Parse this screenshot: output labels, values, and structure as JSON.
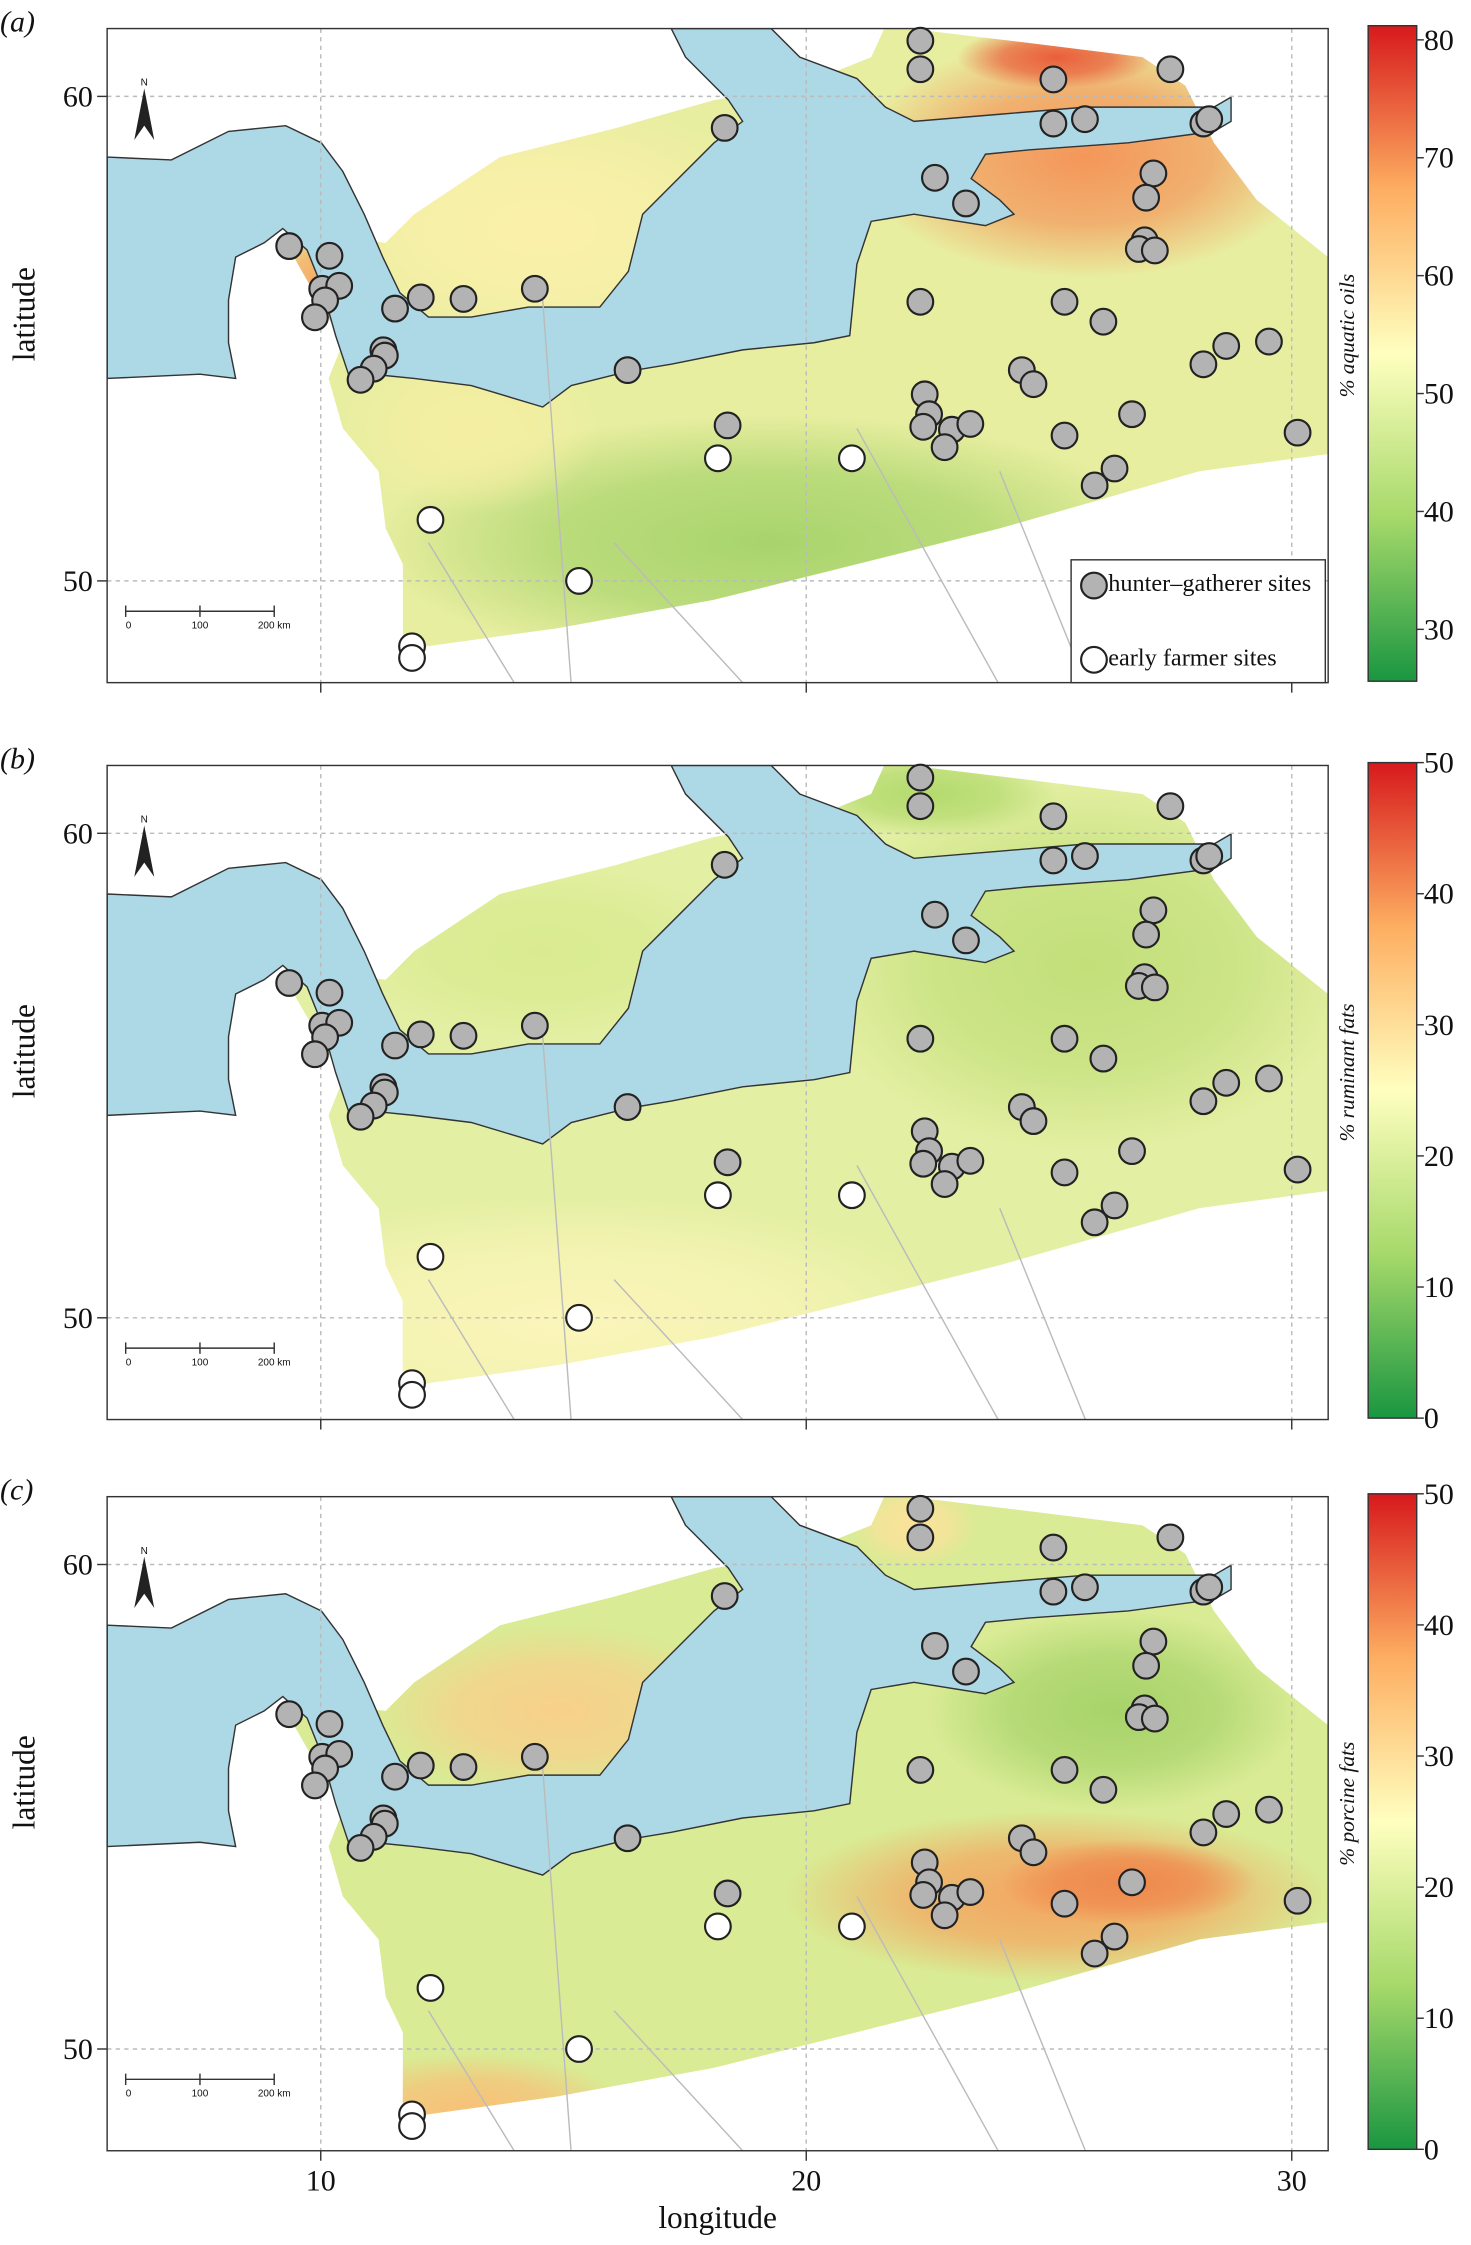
{
  "chart_data": [
    {
      "type": "scatter",
      "panel_label": "(a)",
      "ylabel": "latitude",
      "xlim": [
        5.6,
        30.75
      ],
      "ylim": [
        47.9,
        61.4
      ],
      "xticks": [
        10,
        20,
        30
      ],
      "yticks": [
        50,
        60
      ],
      "grid": true,
      "series": [
        {
          "name": "hunter–gatherer sites",
          "color": "#b3b3b3",
          "x": [
            22.35,
            22.35,
            25.09,
            27.5,
            18.32,
            25.09,
            25.74,
            28.18,
            28.3,
            22.65,
            27.15,
            27.0,
            23.29,
            26.97,
            26.85,
            27.18,
            9.35,
            10.18,
            10.03,
            10.38,
            10.09,
            9.88,
            11.53,
            12.06,
            12.94,
            14.41,
            22.35,
            25.32,
            26.12,
            28.65,
            29.53,
            28.18,
            24.44,
            24.68,
            11.29,
            11.32,
            11.09,
            10.82,
            16.32,
            22.44,
            22.53,
            22.41,
            23.0,
            23.38,
            22.85,
            18.38,
            25.32,
            26.71,
            30.12,
            26.35,
            25.94
          ],
          "y": [
            61.15,
            60.56,
            60.35,
            60.56,
            59.35,
            59.44,
            59.53,
            59.44,
            59.53,
            58.32,
            58.41,
            57.91,
            57.79,
            57.03,
            56.85,
            56.82,
            56.91,
            56.71,
            56.03,
            56.09,
            55.79,
            55.44,
            55.62,
            55.85,
            55.82,
            56.03,
            55.76,
            55.76,
            55.35,
            54.85,
            54.94,
            54.47,
            54.35,
            54.06,
            54.76,
            54.65,
            54.38,
            54.15,
            54.35,
            53.85,
            53.44,
            53.18,
            53.12,
            53.24,
            52.76,
            53.21,
            53.0,
            53.44,
            53.06,
            52.32,
            51.97
          ]
        },
        {
          "name": "early farmer sites",
          "color": "#ffffff",
          "x": [
            18.18,
            20.94,
            12.26,
            15.32,
            11.88,
            11.88
          ],
          "y": [
            52.53,
            52.53,
            51.26,
            50.0,
            48.65,
            48.41
          ]
        }
      ],
      "legend": "bottom right",
      "colorbar": {
        "label": "% aquatic oils",
        "lim": [
          25.6,
          81.2
        ],
        "ticks": [
          30,
          40,
          50,
          60,
          70,
          80
        ],
        "colors": [
          "#1a9641",
          "#a6d96a",
          "#ffffbf",
          "#fdae61",
          "#d7191c"
        ]
      }
    },
    {
      "type": "scatter",
      "panel_label": "(b)",
      "ylabel": "latitude",
      "xlim": [
        5.6,
        30.75
      ],
      "ylim": [
        47.9,
        61.4
      ],
      "xticks": [
        10,
        20,
        30
      ],
      "yticks": [
        50,
        60
      ],
      "grid": true,
      "colorbar": {
        "label": "% ruminant fats",
        "lim": [
          0,
          50
        ],
        "ticks": [
          0,
          10,
          20,
          30,
          40,
          50
        ],
        "colors": [
          "#1a9641",
          "#a6d96a",
          "#ffffbf",
          "#fdae61",
          "#d7191c"
        ]
      }
    },
    {
      "type": "scatter",
      "panel_label": "(c)",
      "ylabel": "latitude",
      "xlabel": "longitude",
      "xlim": [
        5.6,
        30.75
      ],
      "ylim": [
        47.9,
        61.4
      ],
      "xticks": [
        10,
        20,
        30
      ],
      "yticks": [
        50,
        60
      ],
      "grid": true,
      "colorbar": {
        "label": "% porcine fats",
        "lim": [
          0,
          50
        ],
        "ticks": [
          0,
          10,
          20,
          30,
          40,
          50
        ],
        "colors": [
          "#1a9641",
          "#a6d96a",
          "#ffffbf",
          "#fdae61",
          "#d7191c"
        ]
      }
    }
  ],
  "scale_bar": {
    "labels": [
      "0",
      "100",
      "200 km"
    ]
  },
  "north": "N"
}
